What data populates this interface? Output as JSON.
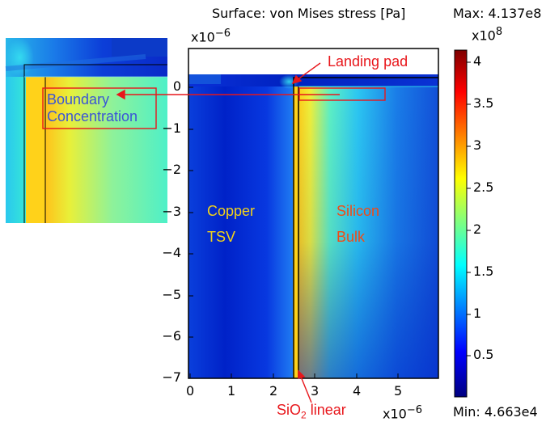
{
  "plot": {
    "title": "Surface: von Mises stress [Pa]",
    "max_label": "Max: 4.137e8",
    "min_label": "Min: 4.663e4",
    "y_multiplier": "x10",
    "y_multiplier_exp": "−6",
    "x_multiplier": "x10",
    "x_multiplier_exp": "−6",
    "colorbar_multiplier": "x10",
    "colorbar_multiplier_exp": "8",
    "x_ticks": [
      "0",
      "1",
      "2",
      "3",
      "4",
      "5"
    ],
    "y_ticks": [
      "0",
      "−1",
      "−2",
      "−3",
      "−4",
      "−5",
      "−6",
      "−7"
    ],
    "colorbar_ticks": [
      "4",
      "3.5",
      "3",
      "2.5",
      "2",
      "1.5",
      "1",
      "0.5"
    ]
  },
  "annotations": {
    "landing_pad": "Landing pad",
    "copper_line1": "Copper",
    "copper_line2": "TSV",
    "silicon_line1": "Silicon",
    "silicon_line2": "Bulk",
    "sio2_prefix": "SiO",
    "sio2_sub": "2",
    "sio2_suffix": " linear",
    "boundary_line1": "Boundary",
    "boundary_line2": "Concentration"
  },
  "colors": {
    "annotation_red": "#e8161b",
    "annotation_yellow": "#f2d21a",
    "annotation_blue": "#3a55d6",
    "colormap": "jet"
  }
}
